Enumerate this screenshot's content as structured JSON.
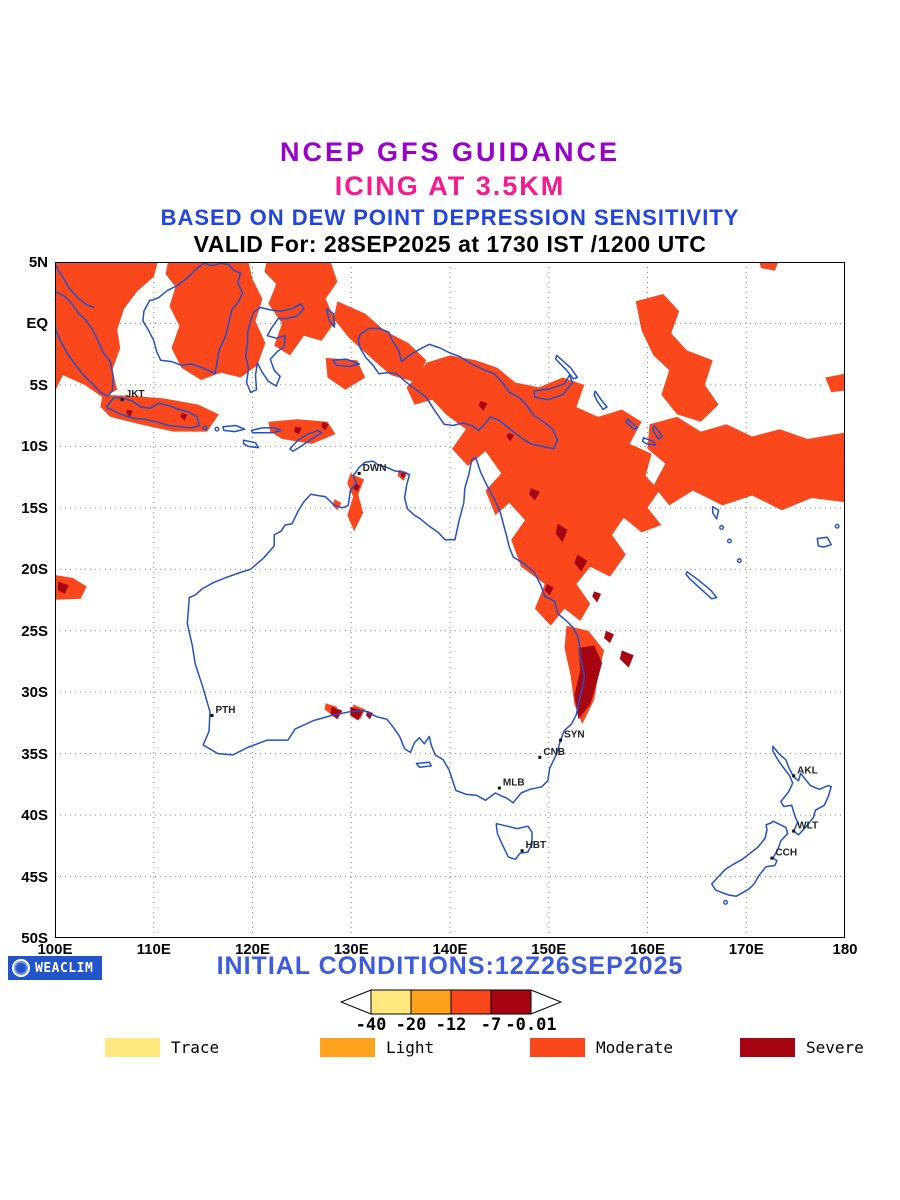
{
  "header": {
    "line1": {
      "text": "NCEP GFS GUIDANCE",
      "color": "#9900CC"
    },
    "line2": {
      "text": "ICING AT 3.5KM",
      "color": "#F8198F"
    },
    "line3": {
      "text": "BASED ON DEW POINT DEPRESSION SENSITIVITY",
      "color": "#2244E0"
    },
    "line4": {
      "text": "VALID For: 28SEP2025 at 1730 IST /1200 UTC",
      "color": "#000000"
    }
  },
  "map": {
    "coastline_color": "#2350C8",
    "grid_color": "#8a8a8a",
    "frame_color": "#000000",
    "lat_ticks": [
      {
        "label": "5N",
        "value": 5
      },
      {
        "label": "EQ",
        "value": 0
      },
      {
        "label": "5S",
        "value": -5
      },
      {
        "label": "10S",
        "value": -10
      },
      {
        "label": "15S",
        "value": -15
      },
      {
        "label": "20S",
        "value": -20
      },
      {
        "label": "25S",
        "value": -25
      },
      {
        "label": "30S",
        "value": -30
      },
      {
        "label": "35S",
        "value": -35
      },
      {
        "label": "40S",
        "value": -40
      },
      {
        "label": "45S",
        "value": -45
      },
      {
        "label": "50S",
        "value": -50
      }
    ],
    "lon_ticks": [
      {
        "label": "100E",
        "value": 100
      },
      {
        "label": "110E",
        "value": 110
      },
      {
        "label": "120E",
        "value": 120
      },
      {
        "label": "130E",
        "value": 130
      },
      {
        "label": "140E",
        "value": 140
      },
      {
        "label": "150E",
        "value": 150
      },
      {
        "label": "160E",
        "value": 160
      },
      {
        "label": "170E",
        "value": 170
      },
      {
        "label": "180",
        "value": 180
      }
    ],
    "cities": [
      {
        "name": "JKT",
        "lon": 106.8,
        "lat": -6.2
      },
      {
        "name": "DWN",
        "lon": 130.8,
        "lat": -12.2
      },
      {
        "name": "PTH",
        "lon": 115.9,
        "lat": -31.9
      },
      {
        "name": "SYN",
        "lon": 151.2,
        "lat": -33.9
      },
      {
        "name": "CNB",
        "lon": 149.1,
        "lat": -35.3
      },
      {
        "name": "MLB",
        "lon": 145.0,
        "lat": -37.8
      },
      {
        "name": "HBT",
        "lon": 147.3,
        "lat": -42.9
      },
      {
        "name": "AKL",
        "lon": 174.8,
        "lat": -36.8
      },
      {
        "name": "WLT",
        "lon": 174.8,
        "lat": -41.3
      },
      {
        "name": "CCH",
        "lon": 172.6,
        "lat": -43.5
      }
    ]
  },
  "icing": {
    "moderate_color": "#FB471C",
    "severe_color": "#A80512"
  },
  "colorbar": {
    "tick_labels": [
      "-40",
      "-20",
      "-12",
      "-7",
      "-0.01"
    ],
    "segment_colors": [
      "#FFE87F",
      "#FFA21E",
      "#FB471C",
      "#A80512"
    ],
    "arrow_fill": "#FFFFFF"
  },
  "legend": {
    "items": [
      {
        "label": "Trace",
        "color": "#FFE87F"
      },
      {
        "label": "Light",
        "color": "#FFA21E"
      },
      {
        "label": "Moderate",
        "color": "#FB471C"
      },
      {
        "label": "Severe",
        "color": "#A80512"
      }
    ]
  },
  "footer": {
    "logo_text": "WEACLIM",
    "logo_bg": "#2255CC",
    "initial_conditions": "INITIAL CONDITIONS:12Z26SEP2025",
    "initial_conditions_color": "#3C5BE0"
  }
}
